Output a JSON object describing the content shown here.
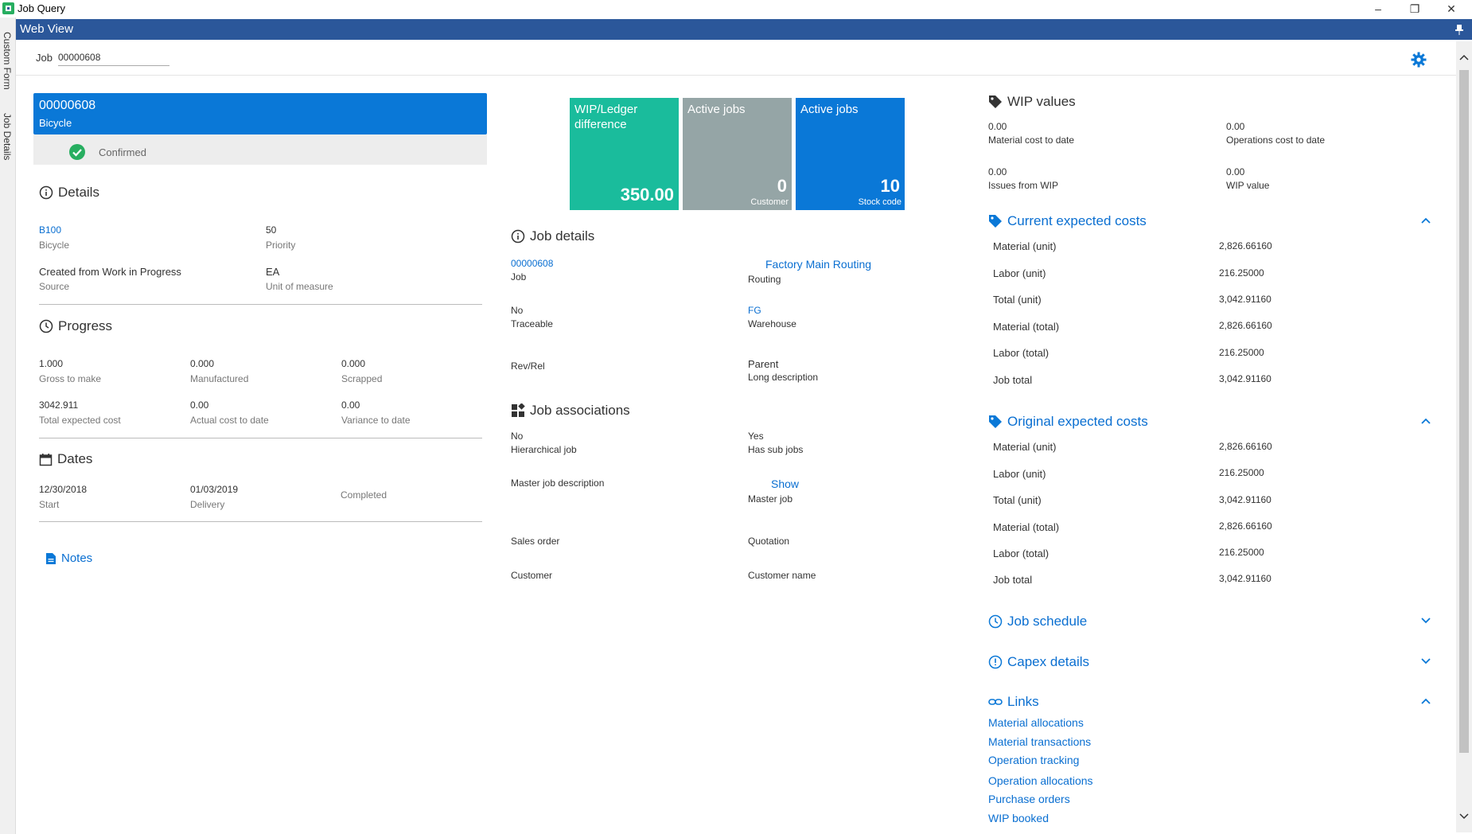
{
  "window": {
    "title": "Job Query",
    "side_tabs": [
      "Custom Form",
      "Job Details"
    ],
    "web_view_title": "Web View"
  },
  "job_bar": {
    "label": "Job",
    "value": "00000608"
  },
  "header": {
    "job": "00000608",
    "description": "Bicycle",
    "status": "Confirmed"
  },
  "details": {
    "title": "Details",
    "stock_code": "B100",
    "stock_desc": "Bicycle",
    "priority_value": "50",
    "priority_label": "Priority",
    "source_value": "Created from Work in Progress",
    "source_label": "Source",
    "uom_value": "EA",
    "uom_label": "Unit of measure"
  },
  "progress": {
    "title": "Progress",
    "items": [
      {
        "value": "1.000",
        "label": "Gross to make"
      },
      {
        "value": "0.000",
        "label": "Manufactured"
      },
      {
        "value": "0.000",
        "label": "Scrapped"
      },
      {
        "value": "3042.911",
        "label": "Total expected cost"
      },
      {
        "value": "0.00",
        "label": "Actual cost to date"
      },
      {
        "value": "0.00",
        "label": "Variance to date"
      }
    ]
  },
  "dates": {
    "title": "Dates",
    "start_value": "12/30/2018",
    "start_label": "Start",
    "delivery_value": "01/03/2019",
    "delivery_label": "Delivery",
    "completed_label": "Completed"
  },
  "notes": {
    "label": "Notes"
  },
  "tiles": [
    {
      "title": "WIP/Ledger difference",
      "value": "350.00",
      "sub": "",
      "color": "#1abc9c"
    },
    {
      "title": "Active jobs",
      "value": "0",
      "sub": "Customer",
      "color": "#95a5a6"
    },
    {
      "title": "Active jobs",
      "value": "10",
      "sub": "Stock code",
      "color": "#0a78d7"
    }
  ],
  "job_details": {
    "title": "Job details",
    "job_value": "00000608",
    "job_label": "Job",
    "routing_value": "Factory Main Routing",
    "routing_label": "Routing",
    "traceable_value": "No",
    "traceable_label": "Traceable",
    "warehouse_value": "FG",
    "warehouse_label": "Warehouse",
    "revrel_label": "Rev/Rel",
    "parent_value": "Parent",
    "longdesc_label": "Long description"
  },
  "job_associations": {
    "title": "Job associations",
    "hier_value": "No",
    "hier_label": "Hierarchical job",
    "subjobs_value": "Yes",
    "subjobs_label": "Has sub jobs",
    "master_desc_label": "Master job description",
    "master_show": "Show",
    "master_label": "Master job",
    "sales_order_label": "Sales order",
    "quotation_label": "Quotation",
    "customer_label": "Customer",
    "customer_name_label": "Customer name"
  },
  "wip_values": {
    "title": "WIP values",
    "items": [
      {
        "value": "0.00",
        "label": "Material cost to date"
      },
      {
        "value": "0.00",
        "label": "Operations cost to date"
      },
      {
        "value": "0.00",
        "label": "Issues from WIP"
      },
      {
        "value": "0.00",
        "label": "WIP value"
      }
    ]
  },
  "current_costs": {
    "title": "Current expected costs",
    "rows": [
      {
        "label": "Material (unit)",
        "value": "2,826.66160"
      },
      {
        "label": "Labor (unit)",
        "value": "216.25000"
      },
      {
        "label": "Total (unit)",
        "value": "3,042.91160"
      },
      {
        "label": "Material (total)",
        "value": "2,826.66160"
      },
      {
        "label": "Labor (total)",
        "value": "216.25000"
      },
      {
        "label": "Job total",
        "value": "3,042.91160"
      }
    ]
  },
  "original_costs": {
    "title": "Original expected costs",
    "rows": [
      {
        "label": "Material (unit)",
        "value": "2,826.66160"
      },
      {
        "label": "Labor (unit)",
        "value": "216.25000"
      },
      {
        "label": "Total (unit)",
        "value": "3,042.91160"
      },
      {
        "label": "Material (total)",
        "value": "2,826.66160"
      },
      {
        "label": "Labor (total)",
        "value": "216.25000"
      },
      {
        "label": "Job total",
        "value": "3,042.91160"
      }
    ]
  },
  "job_schedule": {
    "title": "Job schedule"
  },
  "capex": {
    "title": "Capex details"
  },
  "links": {
    "title": "Links",
    "items": [
      "Material allocations",
      "Material transactions",
      "Operation tracking",
      "Operation allocations",
      "Purchase orders",
      "WIP booked"
    ]
  },
  "colors": {
    "accent": "#0a78d7",
    "bar": "#2b579a",
    "teal": "#1abc9c",
    "grey": "#95a5a6",
    "success": "#27ae60"
  }
}
